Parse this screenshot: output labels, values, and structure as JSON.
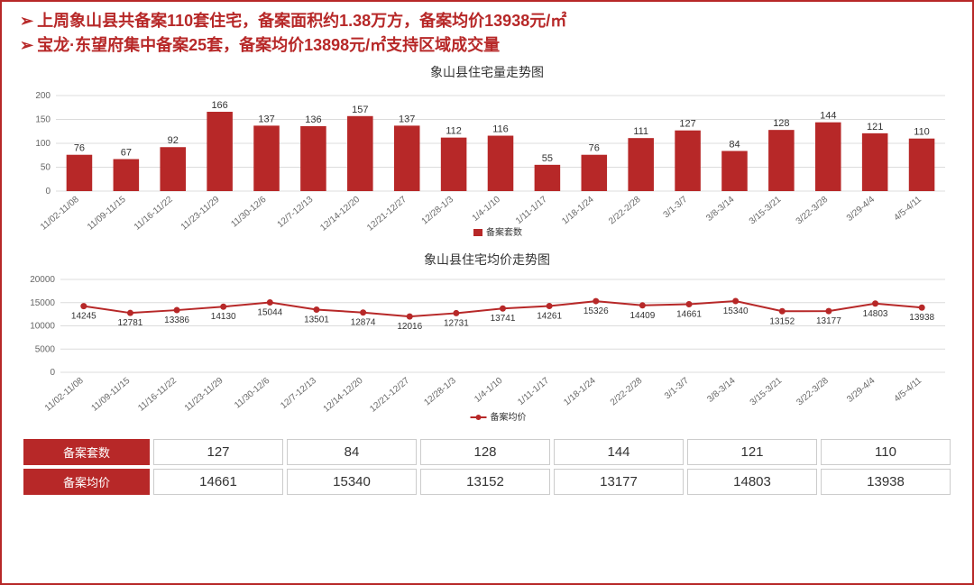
{
  "headline_1": "上周象山县共备案110套住宅，备案面积约1.38万方，备案均价13938元/㎡",
  "headline_2": "宝龙·东望府集中备案25套，备案均价13898元/㎡支持区域成交量",
  "categories": [
    "11/02-11/08",
    "11/09-11/15",
    "11/16-11/22",
    "11/23-11/29",
    "11/30-12/6",
    "12/7-12/13",
    "12/14-12/20",
    "12/21-12/27",
    "12/28-1/3",
    "1/4-1/10",
    "1/11-1/17",
    "1/18-1/24",
    "2/22-2/28",
    "3/1-3/7",
    "3/8-3/14",
    "3/15-3/21",
    "3/22-3/28",
    "3/29-4/4",
    "4/5-4/11"
  ],
  "bar_chart": {
    "title": "象山县住宅量走势图",
    "values": [
      76,
      67,
      92,
      166,
      137,
      136,
      157,
      137,
      112,
      116,
      55,
      76,
      111,
      127,
      84,
      128,
      144,
      121,
      110
    ],
    "legend_label": "备案套数",
    "ylim": [
      0,
      200
    ],
    "ytick_step": 50,
    "bar_color": "#b72828",
    "grid_color": "#dcdcdc",
    "label_fontsize": 11,
    "bg": "#ffffff"
  },
  "line_chart": {
    "title": "象山县住宅均价走势图",
    "values": [
      14245,
      12781,
      13386,
      14130,
      15044,
      13501,
      12874,
      12016,
      12731,
      13741,
      14261,
      15326,
      14409,
      14661,
      15340,
      13152,
      13177,
      14803,
      13938
    ],
    "legend_label": "备案均价",
    "ylim": [
      0,
      20000
    ],
    "ytick_step": 5000,
    "line_color": "#b72828",
    "marker_color": "#b72828",
    "grid_color": "#dcdcdc",
    "label_fontsize": 10,
    "bg": "#ffffff"
  },
  "summary_table": {
    "row_headers": [
      "备案套数",
      "备案均价"
    ],
    "rows": [
      [
        "127",
        "84",
        "128",
        "144",
        "121",
        "110"
      ],
      [
        "14661",
        "15340",
        "13152",
        "13177",
        "14803",
        "13938"
      ]
    ],
    "header_bg": "#b72828",
    "header_color": "#ffffff",
    "cell_border": "#cccccc"
  }
}
